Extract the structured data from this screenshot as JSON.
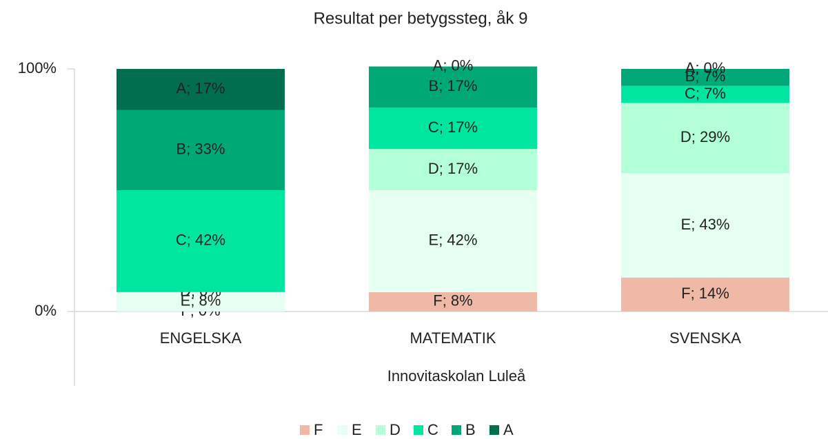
{
  "chart_data": {
    "type": "stacked_bar",
    "title": "Resultat per betygssteg, åk 9",
    "x_label": "Innovitaskolan Luleå",
    "categories": [
      "ENGELSKA",
      "MATEMATIK",
      "SVENSKA"
    ],
    "series": [
      {
        "name": "F",
        "color": "#f0b9a7",
        "values": [
          0,
          8,
          14
        ],
        "value_labels": [
          "F; 0%",
          "F; 8%",
          "F; 14%"
        ]
      },
      {
        "name": "E",
        "color": "#e6fff3",
        "values": [
          8,
          42,
          43
        ],
        "value_labels": [
          "E; 8%",
          "E; 42%",
          "E; 43%"
        ]
      },
      {
        "name": "D",
        "color": "#b3ffd7",
        "values": [
          0,
          17,
          29
        ],
        "value_labels": [
          "D; 0%",
          "D; 17%",
          "D; 29%"
        ]
      },
      {
        "name": "C",
        "color": "#00e6a1",
        "values": [
          42,
          17,
          7
        ],
        "value_labels": [
          "C; 42%",
          "C; 17%",
          "C; 7%"
        ]
      },
      {
        "name": "B",
        "color": "#00a878",
        "values": [
          33,
          17,
          7
        ],
        "value_labels": [
          "B; 33%",
          "B; 17%",
          "B; 7%"
        ]
      },
      {
        "name": "A",
        "color": "#006e4f",
        "values": [
          17,
          0,
          0
        ],
        "value_labels": [
          "A; 17%",
          "A; 0%",
          "A; 0%"
        ]
      }
    ],
    "ylim": [
      0,
      100
    ],
    "yticks": [
      {
        "value": 0,
        "label": "0%"
      },
      {
        "value": 100,
        "label": "100%"
      }
    ]
  }
}
